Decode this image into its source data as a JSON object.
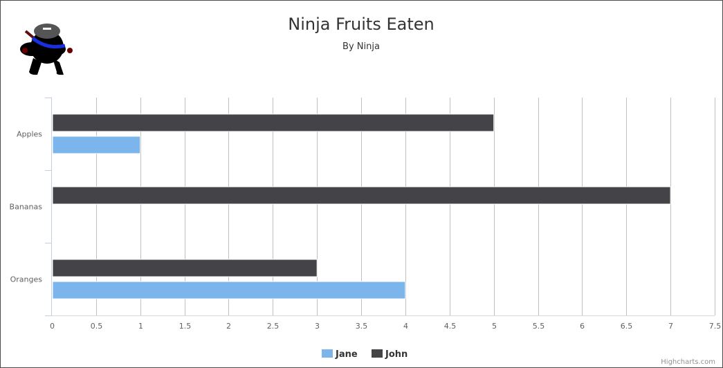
{
  "chart_data": {
    "type": "bar",
    "orientation": "horizontal",
    "title": "Ninja Fruits Eaten",
    "subtitle": "By Ninja",
    "categories": [
      "Apples",
      "Bananas",
      "Oranges"
    ],
    "series": [
      {
        "name": "John",
        "values": [
          5,
          7,
          3
        ],
        "color": "#434348"
      },
      {
        "name": "Jane",
        "values": [
          1,
          0,
          4
        ],
        "color": "#7cb5ec"
      }
    ],
    "xlim": [
      0,
      7.5
    ],
    "tick_step": 0.5,
    "grid": true,
    "legend_position": "bottom-center"
  },
  "legend": {
    "items": [
      {
        "label": "Jane",
        "color": "#7cb5ec"
      },
      {
        "label": "John",
        "color": "#434348"
      }
    ]
  },
  "credits": "Highcharts.com",
  "logo": {
    "icon": "ninja-logo-icon"
  }
}
